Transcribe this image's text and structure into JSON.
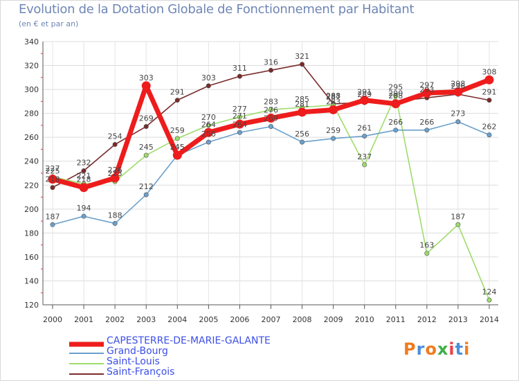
{
  "title": "Evolution de la Dotation Globale de Fonctionnement par Habitant",
  "subtitle": "(en € et par an)",
  "brand": {
    "text": "Proxiti",
    "colors": [
      "#f07b1e",
      "#4a90d9",
      "#f07b1e",
      "#3fae49",
      "#e8434a",
      "#4a90d9",
      "#f07b1e"
    ]
  },
  "chart_data": {
    "type": "line",
    "title": "Evolution de la Dotation Globale de Fonctionnement par Habitant",
    "subtitle": "(en € et par an)",
    "xlabel": "",
    "ylabel": "",
    "x": [
      "2000",
      "2001",
      "2002",
      "2003",
      "2004",
      "2005",
      "2006",
      "2007",
      "2008",
      "2009",
      "2010",
      "2011",
      "2012",
      "2013",
      "2014"
    ],
    "ylim": [
      120,
      340
    ],
    "yticks": [
      120,
      140,
      160,
      180,
      200,
      220,
      240,
      260,
      280,
      300,
      320,
      340
    ],
    "grid": true,
    "legend_position": "bottom-left",
    "series": [
      {
        "name": "Saint-François",
        "color": "#7a2a2a",
        "values": [
          218,
          232,
          254,
          269,
          291,
          303,
          311,
          316,
          321,
          288,
          289,
          290,
          293,
          296,
          291
        ]
      },
      {
        "name": "Saint-Louis",
        "color": "#9ddc6c",
        "values": [
          227,
          221,
          223,
          245,
          259,
          270,
          277,
          283,
          285,
          287,
          237,
          295,
          163,
          187,
          124
        ]
      },
      {
        "name": "Grand-Bourg",
        "color": "#6aa0cc",
        "values": [
          187,
          194,
          188,
          212,
          245,
          256,
          264,
          269,
          256,
          259,
          261,
          266,
          266,
          273,
          262
        ]
      },
      {
        "name": "CAPESTERRE-DE-MARIE-GALANTE",
        "color": "#ee1c1c",
        "values": [
          225,
          218,
          226,
          303,
          245,
          264,
          271,
          276,
          281,
          283,
          291,
          288,
          297,
          298,
          308
        ]
      }
    ],
    "value_labels": {
      "Saint-François": [
        "218",
        "232",
        "254",
        "269",
        "291",
        "303",
        "311",
        "316",
        "321",
        "288",
        "289",
        "290",
        "293",
        "296",
        "291"
      ],
      "Saint-Louis": [
        "227",
        "221",
        "223",
        "245",
        "259",
        "270",
        "277",
        "283",
        "285",
        "287",
        "237",
        "295",
        "163",
        "187",
        "124"
      ],
      "Grand-Bourg": [
        "187",
        "194",
        "188",
        "212",
        "245",
        "256",
        "264",
        "269",
        "256",
        "259",
        "261",
        "266",
        "266",
        "273",
        "262"
      ],
      "CAPESTERRE-DE-MARIE-GALANTE": [
        "225",
        "218",
        "226",
        "303",
        "245",
        "264",
        "271",
        "276",
        "281",
        "283",
        "291",
        "288",
        "297",
        "298",
        "308"
      ]
    }
  },
  "legend": [
    {
      "label": "CAPESTERRE-DE-MARIE-GALANTE",
      "color": "#ee1c1c",
      "style": "thick"
    },
    {
      "label": "Grand-Bourg",
      "color": "#6aa0cc",
      "style": "thin"
    },
    {
      "label": "Saint-Louis",
      "color": "#9ddc6c",
      "style": "thin"
    },
    {
      "label": "Saint-François",
      "color": "#7a2a2a",
      "style": "thin"
    }
  ]
}
